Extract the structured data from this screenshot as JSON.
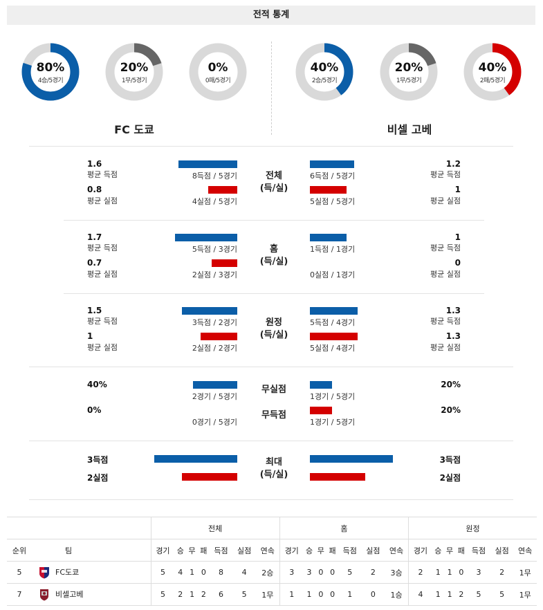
{
  "title": "전적 통계",
  "home_team": "FC 도쿄",
  "away_team": "비셀 고베",
  "colors": {
    "blue": "#0b5ea8",
    "red": "#d40000",
    "gray": "#666666",
    "track": "#d9d9d9"
  },
  "donuts": [
    {
      "pct": "80%",
      "sub": "4승/5경기",
      "fraction": 0.8,
      "color": "#0b5ea8"
    },
    {
      "pct": "20%",
      "sub": "1무/5경기",
      "fraction": 0.2,
      "color": "#666666"
    },
    {
      "pct": "0%",
      "sub": "0패/5경기",
      "fraction": 0.0,
      "color": "#d40000"
    },
    {
      "pct": "40%",
      "sub": "2승/5경기",
      "fraction": 0.4,
      "color": "#0b5ea8"
    },
    {
      "pct": "20%",
      "sub": "1무/5경기",
      "fraction": 0.2,
      "color": "#666666"
    },
    {
      "pct": "40%",
      "sub": "2패/5경기",
      "fraction": 0.4,
      "color": "#d40000"
    }
  ],
  "sections": {
    "total": {
      "label1": "전체",
      "label2": "(득/실)",
      "home": {
        "gf_num": "1.6",
        "gf_txt": "평균 득점",
        "ga_num": "0.8",
        "ga_txt": "평균 실점",
        "gf_cap": "8득점 / 5경기",
        "ga_cap": "4실점 / 5경기",
        "gf_val": 1.6,
        "ga_val": 0.8
      },
      "away": {
        "gf_num": "1.2",
        "gf_txt": "평균 득점",
        "ga_num": "1",
        "ga_txt": "평균 실점",
        "gf_cap": "6득점 / 5경기",
        "ga_cap": "5실점 / 5경기",
        "gf_val": 1.2,
        "ga_val": 1.0
      }
    },
    "home": {
      "label1": "홈",
      "label2": "(득/실)",
      "home": {
        "gf_num": "1.7",
        "gf_txt": "평균 득점",
        "ga_num": "0.7",
        "ga_txt": "평균 실점",
        "gf_cap": "5득점 / 3경기",
        "ga_cap": "2실점 / 3경기",
        "gf_val": 1.7,
        "ga_val": 0.7
      },
      "away": {
        "gf_num": "1",
        "gf_txt": "평균 득점",
        "ga_num": "0",
        "ga_txt": "평균 실점",
        "gf_cap": "1득점 / 1경기",
        "ga_cap": "0실점 / 1경기",
        "gf_val": 1.0,
        "ga_val": 0.0
      }
    },
    "away": {
      "label1": "원정",
      "label2": "(득/실)",
      "home": {
        "gf_num": "1.5",
        "gf_txt": "평균 득점",
        "ga_num": "1",
        "ga_txt": "평균 실점",
        "gf_cap": "3득점 / 2경기",
        "ga_cap": "2실점 / 2경기",
        "gf_val": 1.5,
        "ga_val": 1.0
      },
      "away": {
        "gf_num": "1.3",
        "gf_txt": "평균 득점",
        "ga_num": "1.3",
        "ga_txt": "평균 실점",
        "gf_cap": "5득점 / 4경기",
        "ga_cap": "5실점 / 4경기",
        "gf_val": 1.3,
        "ga_val": 1.3
      }
    },
    "clean": {
      "label_a": "무실점",
      "label_b": "무득점",
      "home": {
        "a_num": "40%",
        "b_num": "0%",
        "a_cap": "2경기 / 5경기",
        "b_cap": "0경기 / 5경기",
        "a_val": 0.4,
        "b_val": 0.0
      },
      "away": {
        "a_num": "20%",
        "b_num": "20%",
        "a_cap": "1경기 / 5경기",
        "b_cap": "1경기 / 5경기",
        "a_val": 0.2,
        "b_val": 0.2
      }
    },
    "max": {
      "label1": "최대",
      "label2": "(득/실)",
      "home": {
        "gf_num": "3득점",
        "ga_num": "2실점",
        "gf_val": 3,
        "ga_val": 2
      },
      "away": {
        "gf_num": "3득점",
        "ga_num": "2실점",
        "gf_val": 3,
        "ga_val": 2
      }
    }
  },
  "table": {
    "groups": [
      "전체",
      "홈",
      "원정"
    ],
    "rank_hdr": "순위",
    "team_hdr": "팀",
    "sub_headers": [
      "경기",
      "승",
      "무",
      "패",
      "득점",
      "실점",
      "연속"
    ],
    "rows": [
      {
        "rank": "5",
        "team": "FC도쿄",
        "crest": "fc-tokyo-crest",
        "total": [
          "5",
          "4",
          "1",
          "0",
          "8",
          "4",
          "2승"
        ],
        "home": [
          "3",
          "3",
          "0",
          "0",
          "5",
          "2",
          "3승"
        ],
        "away": [
          "2",
          "1",
          "1",
          "0",
          "3",
          "2",
          "1무"
        ]
      },
      {
        "rank": "7",
        "team": "비셀고베",
        "crest": "vissel-kobe-crest",
        "total": [
          "5",
          "2",
          "1",
          "2",
          "6",
          "5",
          "1무"
        ],
        "home": [
          "1",
          "1",
          "0",
          "0",
          "1",
          "0",
          "1승"
        ],
        "away": [
          "4",
          "1",
          "1",
          "2",
          "5",
          "5",
          "1무"
        ]
      }
    ]
  }
}
